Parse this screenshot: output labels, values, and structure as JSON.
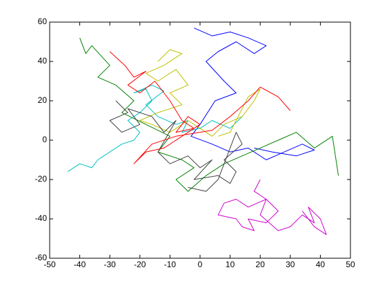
{
  "chart_data": {
    "type": "line",
    "xlim": [
      -50,
      50
    ],
    "ylim": [
      -60,
      60
    ],
    "xticks": [
      -50,
      -40,
      -30,
      -20,
      -10,
      0,
      10,
      20,
      30,
      40,
      50
    ],
    "yticks": [
      -60,
      -40,
      -20,
      0,
      20,
      40,
      60
    ],
    "series": [
      {
        "color": "#0000ff",
        "x": [
          -2,
          4,
          10,
          16,
          22,
          18,
          12,
          6,
          2,
          8,
          12,
          5,
          0,
          -3,
          4,
          10,
          16,
          22,
          28,
          34,
          38,
          32,
          24,
          18
        ],
        "values": [
          57,
          53,
          55,
          52,
          48,
          44,
          50,
          45,
          40,
          30,
          24,
          20,
          8,
          2,
          -2,
          -6,
          -4,
          -10,
          -6,
          -2,
          -5,
          -8,
          -6,
          -4
        ]
      },
      {
        "color": "#008000",
        "x": [
          -40,
          -38,
          -36,
          -30,
          -34,
          -28,
          -22,
          -26,
          -18,
          -10,
          -14,
          -6,
          -2,
          -8,
          -4,
          2,
          8,
          14,
          20,
          26,
          32,
          38,
          44,
          46
        ],
        "values": [
          52,
          44,
          48,
          38,
          32,
          28,
          20,
          14,
          8,
          2,
          -6,
          -10,
          -14,
          -20,
          -26,
          -18,
          -12,
          -8,
          -4,
          0,
          4,
          -4,
          2,
          -18
        ]
      },
      {
        "color": "#cc00cc",
        "x": [
          20,
          18,
          22,
          16,
          12,
          8,
          6,
          12,
          14,
          18,
          16,
          22,
          26,
          22,
          20,
          26,
          30,
          34,
          38,
          36,
          40,
          42,
          38,
          34
        ],
        "values": [
          -20,
          -26,
          -30,
          -34,
          -30,
          -32,
          -38,
          -40,
          -44,
          -46,
          -40,
          -42,
          -36,
          -30,
          -38,
          -46,
          -44,
          -38,
          -42,
          -34,
          -40,
          -48,
          -44,
          -36
        ]
      },
      {
        "color": "#00bfbf",
        "x": [
          -44,
          -40,
          -36,
          -34,
          -30,
          -26,
          -22,
          -20,
          -24,
          -20,
          -16,
          -18,
          -22,
          -16,
          -12,
          -18,
          -14,
          -8,
          -4,
          -6,
          0,
          4,
          10,
          14
        ],
        "values": [
          -16,
          -12,
          -14,
          -10,
          -6,
          -2,
          0,
          4,
          10,
          14,
          20,
          26,
          24,
          28,
          25,
          18,
          12,
          8,
          10,
          4,
          6,
          10,
          6,
          12
        ]
      },
      {
        "color": "#bfbf00",
        "x": [
          -14,
          -10,
          -6,
          -12,
          -18,
          -14,
          -8,
          -4,
          -10,
          -6,
          -14,
          -20,
          -16,
          -10,
          -4,
          0,
          4,
          8,
          14,
          18,
          20,
          16,
          10,
          6
        ],
        "values": [
          40,
          46,
          44,
          38,
          34,
          30,
          36,
          28,
          24,
          18,
          14,
          10,
          8,
          4,
          10,
          6,
          2,
          8,
          12,
          20,
          26,
          22,
          4,
          2
        ]
      },
      {
        "color": "#404040",
        "x": [
          -28,
          -24,
          -30,
          -26,
          -20,
          -24,
          -16,
          -12,
          -8,
          -14,
          -10,
          -4,
          0,
          4,
          -2,
          6,
          10,
          12,
          8,
          14,
          12,
          6,
          2,
          -4
        ],
        "values": [
          20,
          14,
          10,
          4,
          8,
          16,
          12,
          4,
          10,
          -6,
          -12,
          -8,
          -14,
          -10,
          -20,
          -18,
          -22,
          -16,
          -10,
          -2,
          4,
          -20,
          -26,
          -24
        ]
      },
      {
        "color": "#ff0000",
        "x": [
          -30,
          -25,
          -22,
          -18,
          -24,
          -20,
          -15,
          -10,
          -6,
          -2,
          -8,
          -4,
          0,
          -12,
          -18,
          -22,
          -16,
          -8,
          4,
          10,
          16,
          20,
          26,
          30
        ],
        "values": [
          45,
          38,
          32,
          35,
          28,
          24,
          30,
          20,
          10,
          6,
          4,
          12,
          8,
          -4,
          -6,
          -12,
          -2,
          2,
          5,
          12,
          20,
          27,
          22,
          15
        ]
      }
    ]
  }
}
